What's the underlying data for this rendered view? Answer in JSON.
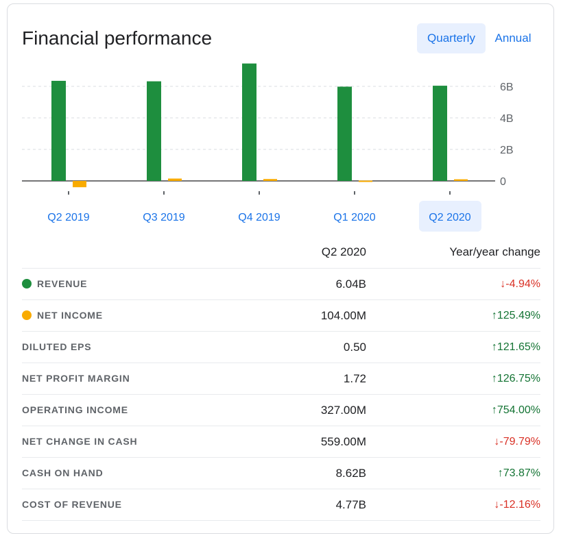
{
  "header": {
    "title": "Financial performance",
    "toggle_quarterly": "Quarterly",
    "toggle_annual": "Annual"
  },
  "chart_data": {
    "type": "bar",
    "categories": [
      "Q2 2019",
      "Q3 2019",
      "Q4 2019",
      "Q1 2020",
      "Q2 2020"
    ],
    "series": [
      {
        "name": "Revenue",
        "color": "#1e8e3e",
        "values": [
          6.35,
          6.32,
          7.45,
          5.98,
          6.04
        ]
      },
      {
        "name": "Net income",
        "color": "#f9ab00",
        "values": [
          -0.4,
          0.15,
          0.12,
          0.02,
          0.104
        ]
      }
    ],
    "ylim": [
      -0.4,
      7.5
    ],
    "yticks": [
      0,
      2,
      4,
      6
    ],
    "ytick_labels": [
      "0",
      "2B",
      "4B",
      "6B"
    ],
    "selected_category": "Q2 2020",
    "grid": true
  },
  "table": {
    "col_period": "Q2 2020",
    "col_change": "Year/year change",
    "rows": [
      {
        "label": "REVENUE",
        "value": "6.04B",
        "change": "-4.94%",
        "dir": "down",
        "dot": "#1e8e3e"
      },
      {
        "label": "NET INCOME",
        "value": "104.00M",
        "change": "125.49%",
        "dir": "up",
        "dot": "#f9ab00"
      },
      {
        "label": "DILUTED EPS",
        "value": "0.50",
        "change": "121.65%",
        "dir": "up"
      },
      {
        "label": "NET PROFIT MARGIN",
        "value": "1.72",
        "change": "126.75%",
        "dir": "up"
      },
      {
        "label": "OPERATING INCOME",
        "value": "327.00M",
        "change": "754.00%",
        "dir": "up"
      },
      {
        "label": "NET CHANGE IN CASH",
        "value": "559.00M",
        "change": "-79.79%",
        "dir": "down"
      },
      {
        "label": "CASH ON HAND",
        "value": "8.62B",
        "change": "73.87%",
        "dir": "up"
      },
      {
        "label": "COST OF REVENUE",
        "value": "4.77B",
        "change": "-12.16%",
        "dir": "down"
      }
    ]
  }
}
